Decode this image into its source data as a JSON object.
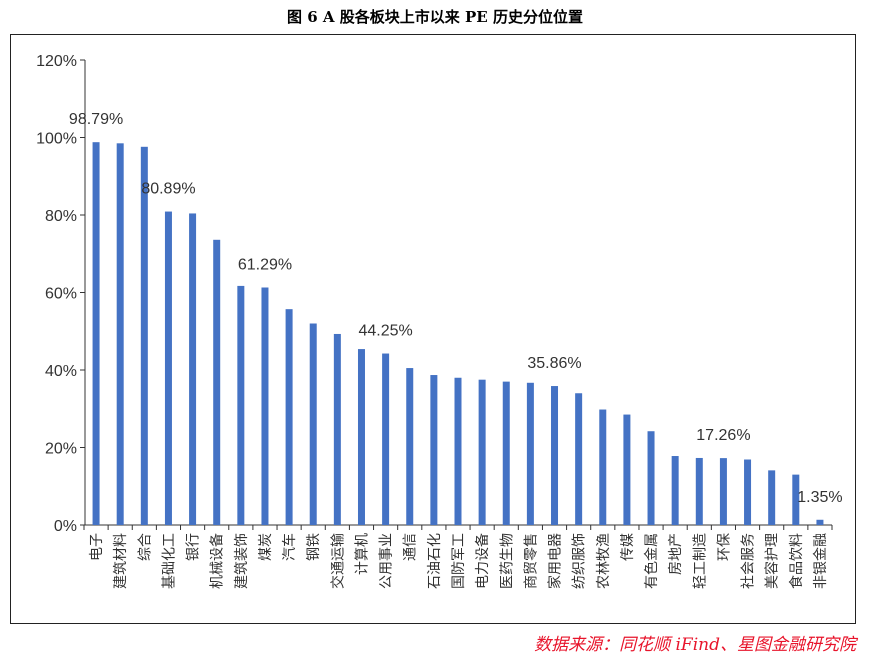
{
  "title": "图 6 A 股各板块上市以来 PE 历史分位位置",
  "source": "数据来源：同花顺 iFind、星图金融研究院",
  "chart_data": {
    "type": "bar",
    "categories": [
      "电子",
      "建筑材料",
      "综合",
      "基础化工",
      "银行",
      "机械设备",
      "建筑装饰",
      "煤炭",
      "汽车",
      "钢铁",
      "交通运输",
      "计算机",
      "公用事业",
      "通信",
      "石油石化",
      "国防军工",
      "电力设备",
      "医药生物",
      "商贸零售",
      "家用电器",
      "纺织服饰",
      "农林牧渔",
      "传媒",
      "有色金属",
      "房地产",
      "轻工制造",
      "环保",
      "社会服务",
      "美容护理",
      "食品饮料",
      "非银金融"
    ],
    "values": [
      98.79,
      98.5,
      97.6,
      80.89,
      80.4,
      73.6,
      61.7,
      61.29,
      55.7,
      52.0,
      49.3,
      45.4,
      44.25,
      40.5,
      38.7,
      38.0,
      37.5,
      37.0,
      36.7,
      35.86,
      34.0,
      29.8,
      28.5,
      24.2,
      17.8,
      17.3,
      17.26,
      16.9,
      14.1,
      13.0,
      1.35
    ],
    "data_labels": [
      {
        "category": "电子",
        "text": "98.79%"
      },
      {
        "category": "基础化工",
        "text": "80.89%"
      },
      {
        "category": "煤炭",
        "text": "61.29%"
      },
      {
        "category": "公用事业",
        "text": "44.25%"
      },
      {
        "category": "家用电器",
        "text": "35.86%"
      },
      {
        "category": "环保",
        "text": "17.26%"
      },
      {
        "category": "非银金融",
        "text": "1.35%"
      }
    ],
    "yticks": [
      "0%",
      "20%",
      "40%",
      "60%",
      "80%",
      "100%",
      "120%"
    ],
    "ylim": [
      0,
      120
    ],
    "bar_color": "#4472c4",
    "grid": false,
    "legend": "none"
  }
}
